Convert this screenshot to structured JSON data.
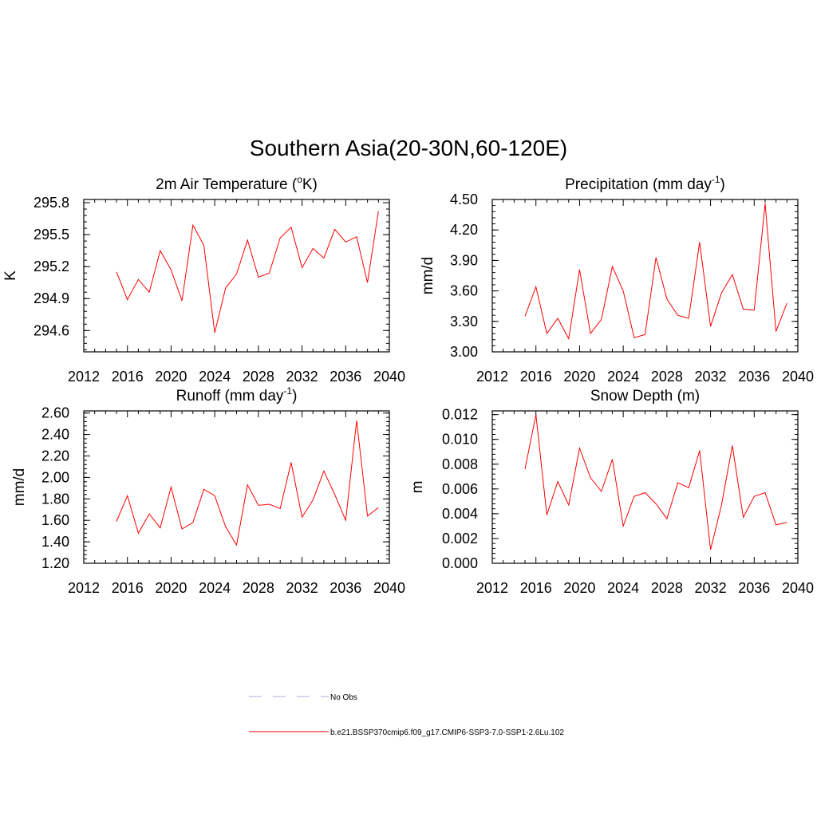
{
  "page": {
    "title": "Southern Asia(20-30N,60-120E)"
  },
  "colors": {
    "model": "#ff0000",
    "obs": "#aaaadd",
    "axis": "#000000"
  },
  "chart_data": [
    {
      "type": "line",
      "title": "2m Air Temperature (",
      "title_sup": "o",
      "title_after": "K)",
      "title_sup_kind": "prefix",
      "ylabel": "K",
      "xlim": [
        2012,
        2040
      ],
      "ylim": [
        294.4,
        295.83
      ],
      "xticks": [
        2012,
        2016,
        2020,
        2024,
        2028,
        2032,
        2036,
        2040
      ],
      "yticks": [
        294.6,
        294.9,
        295.2,
        295.5,
        295.8
      ],
      "ytick_labels": [
        "294.6",
        "294.9",
        "295.2",
        "295.5",
        "295.8"
      ],
      "series": [
        {
          "name": "b.e21.BSSP370cmip6.f09_g17.CMIP6-SSP3-7.0-SSP1-2.6Lu.102",
          "x": [
            2015,
            2016,
            2017,
            2018,
            2019,
            2020,
            2021,
            2022,
            2023,
            2024,
            2025,
            2026,
            2027,
            2028,
            2029,
            2030,
            2031,
            2032,
            2033,
            2034,
            2035,
            2036,
            2037,
            2038,
            2039
          ],
          "y": [
            295.15,
            294.89,
            295.08,
            294.96,
            295.35,
            295.17,
            294.88,
            295.59,
            295.4,
            294.58,
            295.0,
            295.13,
            295.45,
            295.1,
            295.14,
            295.47,
            295.57,
            295.19,
            295.37,
            295.28,
            295.55,
            295.43,
            295.48,
            295.05,
            295.72
          ]
        }
      ]
    },
    {
      "type": "line",
      "title": "Precipitation (mm day",
      "title_sup": "-1",
      "title_after": ")",
      "ylabel": "mm/d",
      "xlim": [
        2012,
        2040
      ],
      "ylim": [
        3.0,
        4.5
      ],
      "xticks": [
        2012,
        2016,
        2020,
        2024,
        2028,
        2032,
        2036,
        2040
      ],
      "yticks": [
        3.0,
        3.3,
        3.6,
        3.9,
        4.2,
        4.5
      ],
      "ytick_labels": [
        "3.00",
        "3.30",
        "3.60",
        "3.90",
        "4.20",
        "4.50"
      ],
      "series": [
        {
          "name": "b.e21.BSSP370cmip6.f09_g17.CMIP6-SSP3-7.0-SSP1-2.6Lu.102",
          "x": [
            2015,
            2016,
            2017,
            2018,
            2019,
            2020,
            2021,
            2022,
            2023,
            2024,
            2025,
            2026,
            2027,
            2028,
            2029,
            2030,
            2031,
            2032,
            2033,
            2034,
            2035,
            2036,
            2037,
            2038,
            2039
          ],
          "y": [
            3.35,
            3.64,
            3.18,
            3.33,
            3.13,
            3.81,
            3.18,
            3.32,
            3.84,
            3.6,
            3.14,
            3.17,
            3.93,
            3.52,
            3.36,
            3.33,
            4.08,
            3.25,
            3.58,
            3.76,
            3.42,
            3.41,
            4.46,
            3.2,
            3.48
          ]
        }
      ]
    },
    {
      "type": "line",
      "title": "Runoff (mm day",
      "title_sup": "-1",
      "title_after": ")",
      "ylabel": "mm/d",
      "xlim": [
        2012,
        2040
      ],
      "ylim": [
        1.2,
        2.62
      ],
      "xticks": [
        2012,
        2016,
        2020,
        2024,
        2028,
        2032,
        2036,
        2040
      ],
      "yticks": [
        1.2,
        1.4,
        1.6,
        1.8,
        2.0,
        2.2,
        2.4,
        2.6
      ],
      "ytick_labels": [
        "1.20",
        "1.40",
        "1.60",
        "1.80",
        "2.00",
        "2.20",
        "2.40",
        "2.60"
      ],
      "series": [
        {
          "name": "b.e21.BSSP370cmip6.f09_g17.CMIP6-SSP3-7.0-SSP1-2.6Lu.102",
          "x": [
            2015,
            2016,
            2017,
            2018,
            2019,
            2020,
            2021,
            2022,
            2023,
            2024,
            2025,
            2026,
            2027,
            2028,
            2029,
            2030,
            2031,
            2032,
            2033,
            2034,
            2035,
            2036,
            2037,
            2038,
            2039
          ],
          "y": [
            1.59,
            1.83,
            1.48,
            1.66,
            1.53,
            1.91,
            1.52,
            1.58,
            1.89,
            1.83,
            1.54,
            1.37,
            1.93,
            1.74,
            1.75,
            1.71,
            2.14,
            1.63,
            1.79,
            2.06,
            1.84,
            1.6,
            2.53,
            1.64,
            1.72
          ]
        }
      ]
    },
    {
      "type": "line",
      "title": "Snow Depth (m)",
      "title_sup": "",
      "title_after": "",
      "ylabel": "m",
      "xlim": [
        2012,
        2040
      ],
      "ylim": [
        0.0,
        0.0123
      ],
      "xticks": [
        2012,
        2016,
        2020,
        2024,
        2028,
        2032,
        2036,
        2040
      ],
      "yticks": [
        0.0,
        0.002,
        0.004,
        0.006,
        0.008,
        0.01,
        0.012
      ],
      "ytick_labels": [
        "0.000",
        "0.002",
        "0.004",
        "0.006",
        "0.008",
        "0.010",
        "0.012"
      ],
      "series": [
        {
          "name": "b.e21.BSSP370cmip6.f09_g17.CMIP6-SSP3-7.0-SSP1-2.6Lu.102",
          "x": [
            2015,
            2016,
            2017,
            2018,
            2019,
            2020,
            2021,
            2022,
            2023,
            2024,
            2025,
            2026,
            2027,
            2028,
            2029,
            2030,
            2031,
            2032,
            2033,
            2034,
            2035,
            2036,
            2037,
            2038,
            2039
          ],
          "y": [
            0.0076,
            0.012,
            0.0039,
            0.0066,
            0.0047,
            0.0093,
            0.0069,
            0.0058,
            0.0084,
            0.003,
            0.0054,
            0.0057,
            0.0048,
            0.0036,
            0.0065,
            0.0061,
            0.0091,
            0.0011,
            0.0047,
            0.0095,
            0.0037,
            0.0054,
            0.0057,
            0.0031,
            0.0033
          ]
        }
      ]
    }
  ],
  "legend": [
    {
      "label": "No Obs",
      "style": "dashed",
      "color": "#aaaadd"
    },
    {
      "label": "b.e21.BSSP370cmip6.f09_g17.CMIP6-SSP3-7.0-SSP1-2.6Lu.102",
      "style": "solid",
      "color": "#ff0000"
    }
  ]
}
